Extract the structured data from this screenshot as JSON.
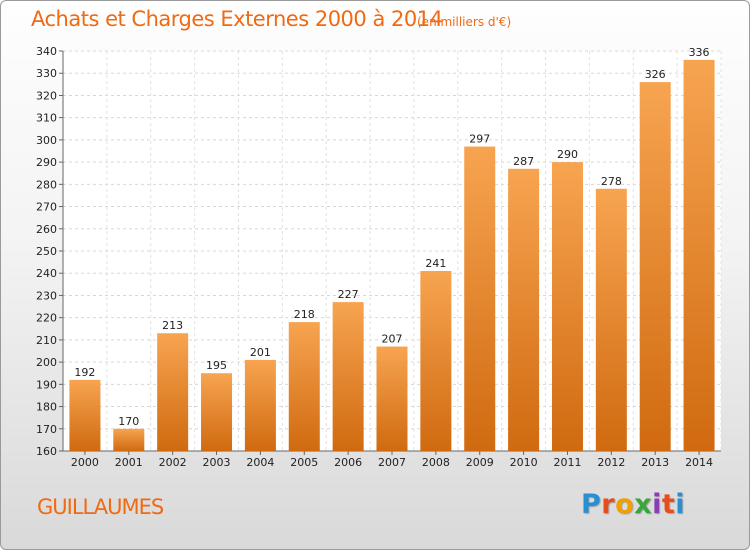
{
  "title": "Achats et Charges Externes 2000 à 2014",
  "subtitle": "(en milliers d'€)",
  "commune": "GUILLAUMES",
  "logo": {
    "letters": [
      "P",
      "r",
      "o",
      "x",
      "i",
      "t",
      "i"
    ],
    "colors": [
      "#2a8fd0",
      "#e84c1c",
      "#f0a000",
      "#3aa63a",
      "#8a3fb0",
      "#e84c1c",
      "#2a8fd0"
    ]
  },
  "chart_data": {
    "type": "bar",
    "categories": [
      "2000",
      "2001",
      "2002",
      "2003",
      "2004",
      "2005",
      "2006",
      "2007",
      "2008",
      "2009",
      "2010",
      "2011",
      "2012",
      "2013",
      "2014"
    ],
    "values": [
      192,
      170,
      213,
      195,
      201,
      218,
      227,
      207,
      241,
      297,
      287,
      290,
      278,
      326,
      336
    ],
    "ylim": [
      160,
      340
    ],
    "yticks": [
      160,
      170,
      180,
      190,
      200,
      210,
      220,
      230,
      240,
      250,
      260,
      270,
      280,
      290,
      300,
      310,
      320,
      330,
      340
    ],
    "grid": true,
    "bar_color_top": "#f7a450",
    "bar_color_bottom": "#d06a10"
  }
}
